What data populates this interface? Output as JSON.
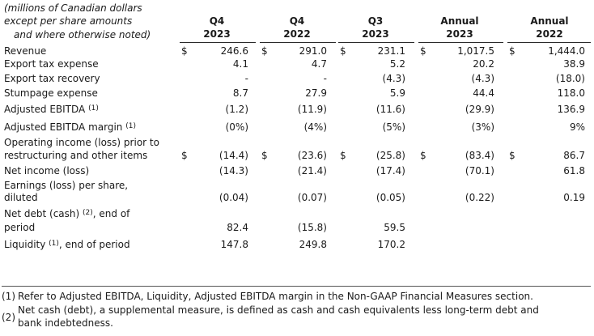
{
  "header": {
    "units_lines": [
      "(millions of Canadian dollars",
      "except per share amounts",
      "and where otherwise noted)"
    ],
    "columns": [
      {
        "line1": "Q4",
        "line2": "2023"
      },
      {
        "line1": "Q4",
        "line2": "2022"
      },
      {
        "line1": "Q3",
        "line2": "2023"
      },
      {
        "line1": "Annual",
        "line2": "2023"
      },
      {
        "line1": "Annual",
        "line2": "2022"
      }
    ]
  },
  "rows": [
    {
      "label": "Revenue",
      "values": [
        "246.6",
        "291.0",
        "231.1",
        "1,017.5",
        "1,444.0"
      ],
      "dollar": true
    },
    {
      "label": "Export tax expense",
      "values": [
        "4.1",
        "4.7",
        "5.2",
        "20.2",
        "38.9"
      ]
    },
    {
      "label": "Export tax recovery",
      "values": [
        "-",
        "-",
        "(4.3)",
        "(4.3)",
        "(18.0)"
      ]
    },
    {
      "label": "Stumpage expense",
      "values": [
        "8.7",
        "27.9",
        "5.9",
        "44.4",
        "118.0"
      ]
    },
    {
      "label": "Adjusted EBITDA",
      "note": "(1)",
      "values": [
        "(1.2)",
        "(11.9)",
        "(11.6)",
        "(29.9)",
        "136.9"
      ]
    },
    {
      "label": "Adjusted EBITDA margin",
      "note": "(1)",
      "values": [
        "(0%)",
        "(4%)",
        "(5%)",
        "(3%)",
        "9%"
      ]
    },
    {
      "label_lines": [
        "Operating income (loss) prior to",
        "restructuring and other items"
      ],
      "values": [
        "(14.4)",
        "(23.6)",
        "(25.8)",
        "(83.4)",
        "86.7"
      ],
      "dollar": true
    },
    {
      "label": "Net income (loss)",
      "values": [
        "(14.3)",
        "(21.4)",
        "(17.4)",
        "(70.1)",
        "61.8"
      ]
    },
    {
      "label_lines": [
        "Earnings (loss) per share,",
        "diluted"
      ],
      "values": [
        "(0.04)",
        "(0.07)",
        "(0.05)",
        "(0.22)",
        "0.19"
      ]
    },
    {
      "label_line1_pre": "Net debt (cash)",
      "note": "(2)",
      "label_line1_post": ", end of",
      "label_line2": "period",
      "values": [
        "82.4",
        "(15.8)",
        "59.5",
        "",
        ""
      ]
    },
    {
      "label": "Liquidity",
      "note": "(1)",
      "label_post": ", end of period",
      "values": [
        "147.8",
        "249.8",
        "170.2",
        "",
        ""
      ]
    }
  ],
  "currency_symbol": "$",
  "footnotes": [
    {
      "mark": "(1)",
      "text_lines": [
        "Refer to Adjusted EBITDA, Liquidity, Adjusted EBITDA margin in the Non-GAAP Financial Measures section."
      ]
    },
    {
      "mark": "(2)",
      "text_lines": [
        "Net cash (debt), a supplemental measure, is defined as cash and cash equivalents less long-term debt and",
        "bank indebtedness."
      ]
    }
  ]
}
